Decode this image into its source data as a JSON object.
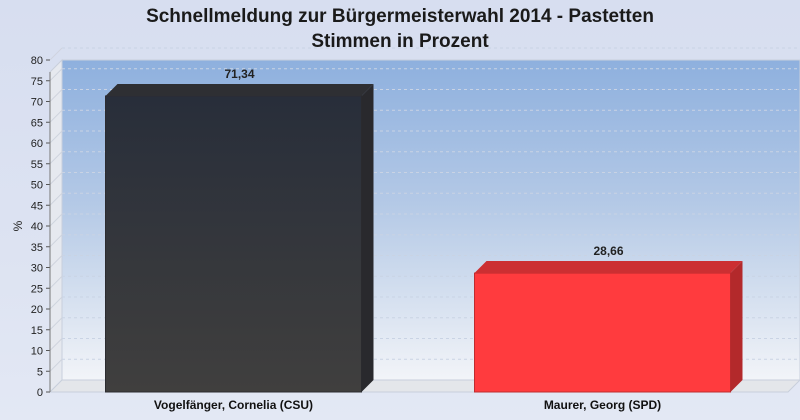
{
  "title": {
    "line1": "Schnellmeldung zur Bürgermeisterwahl 2014 - Pastetten",
    "line2": "Stimmen in Prozent"
  },
  "chart_data": {
    "type": "bar",
    "title": "Schnellmeldung zur Bürgermeisterwahl 2014 - Pastetten / Stimmen in Prozent",
    "xlabel": "",
    "ylabel": "%",
    "ylim": [
      0,
      80
    ],
    "yticks": [
      0,
      5,
      10,
      15,
      20,
      25,
      30,
      35,
      40,
      45,
      50,
      55,
      60,
      65,
      70,
      75,
      80
    ],
    "grid": true,
    "categories": [
      "Vogelfänger, Cornelia (CSU)",
      "Maurer, Georg (SPD)"
    ],
    "values": [
      71.34,
      28.66
    ],
    "value_labels": [
      "71,34",
      "28,66"
    ],
    "colors": [
      "#3a3b40",
      "#ff3b3e"
    ]
  }
}
